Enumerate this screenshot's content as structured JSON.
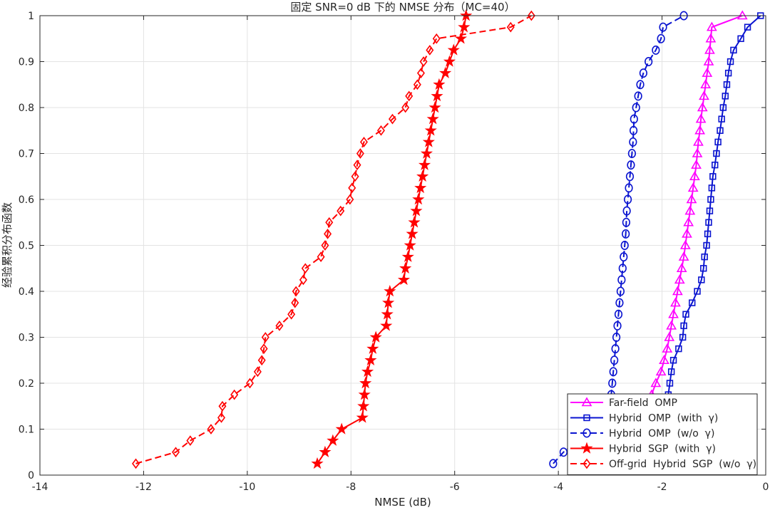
{
  "chart_data": {
    "type": "line",
    "title": "固定 SNR=0 dB 下的 NMSE 分布（MC=40）",
    "xlabel": "NMSE (dB)",
    "ylabel": "经验累积分布函数",
    "xlim": [
      -14,
      0
    ],
    "ylim": [
      0,
      1
    ],
    "xticks": [
      "-14",
      "-12",
      "-10",
      "-8",
      "-6",
      "-4",
      "-2",
      "0"
    ],
    "yticks": [
      "0",
      "0.1",
      "0.2",
      "0.3",
      "0.4",
      "0.5",
      "0.6",
      "0.7",
      "0.8",
      "0.9",
      "1"
    ],
    "grid": true,
    "legend_position": "bottom-right",
    "series": [
      {
        "name": "Far-field  OMP",
        "color": "#ff00ff",
        "marker": "triangle",
        "dash": "solid",
        "x": [
          -2.8,
          -2.72,
          -2.62,
          -2.52,
          -2.42,
          -2.3,
          -2.2,
          -2.12,
          -2.02,
          -1.96,
          -1.9,
          -1.86,
          -1.82,
          -1.78,
          -1.74,
          -1.7,
          -1.66,
          -1.62,
          -1.58,
          -1.55,
          -1.52,
          -1.49,
          -1.46,
          -1.43,
          -1.4,
          -1.37,
          -1.34,
          -1.32,
          -1.3,
          -1.27,
          -1.25,
          -1.22,
          -1.19,
          -1.16,
          -1.13,
          -1.1,
          -1.08,
          -1.06,
          -1.04,
          -0.45
        ],
        "y": [
          0.025,
          0.05,
          0.075,
          0.1,
          0.125,
          0.15,
          0.175,
          0.2,
          0.225,
          0.25,
          0.275,
          0.3,
          0.325,
          0.35,
          0.375,
          0.4,
          0.425,
          0.45,
          0.475,
          0.5,
          0.525,
          0.55,
          0.575,
          0.6,
          0.625,
          0.65,
          0.675,
          0.7,
          0.725,
          0.75,
          0.775,
          0.8,
          0.825,
          0.85,
          0.875,
          0.9,
          0.925,
          0.95,
          0.975,
          1.0
        ]
      },
      {
        "name": "Hybrid  OMP  (with  γ)",
        "color": "#0a14d0",
        "marker": "square",
        "dash": "solid",
        "x": [
          -3.3,
          -2.82,
          -2.55,
          -2.32,
          -2.12,
          -1.98,
          -1.88,
          -1.85,
          -1.82,
          -1.78,
          -1.68,
          -1.6,
          -1.58,
          -1.54,
          -1.42,
          -1.32,
          -1.24,
          -1.2,
          -1.18,
          -1.14,
          -1.12,
          -1.1,
          -1.08,
          -1.06,
          -1.04,
          -1.02,
          -0.98,
          -0.95,
          -0.92,
          -0.88,
          -0.85,
          -0.82,
          -0.78,
          -0.75,
          -0.72,
          -0.68,
          -0.62,
          -0.48,
          -0.35,
          -0.1
        ],
        "y": [
          0.025,
          0.05,
          0.075,
          0.1,
          0.125,
          0.15,
          0.175,
          0.2,
          0.225,
          0.25,
          0.275,
          0.3,
          0.325,
          0.35,
          0.375,
          0.4,
          0.425,
          0.45,
          0.475,
          0.5,
          0.525,
          0.55,
          0.575,
          0.6,
          0.625,
          0.65,
          0.675,
          0.7,
          0.725,
          0.75,
          0.775,
          0.8,
          0.825,
          0.85,
          0.875,
          0.9,
          0.925,
          0.95,
          0.975,
          1.0
        ]
      },
      {
        "name": "Hybrid  OMP  (w/o  γ)",
        "color": "#0a14d0",
        "marker": "circle",
        "dash": "dashed",
        "x": [
          -4.1,
          -3.9,
          -3.62,
          -3.38,
          -3.22,
          -3.08,
          -2.98,
          -2.96,
          -2.94,
          -2.92,
          -2.9,
          -2.88,
          -2.86,
          -2.84,
          -2.82,
          -2.8,
          -2.78,
          -2.76,
          -2.74,
          -2.72,
          -2.7,
          -2.69,
          -2.68,
          -2.66,
          -2.64,
          -2.62,
          -2.6,
          -2.58,
          -2.56,
          -2.55,
          -2.54,
          -2.5,
          -2.46,
          -2.42,
          -2.36,
          -2.26,
          -2.12,
          -2.02,
          -1.98,
          -1.58
        ],
        "y": [
          0.025,
          0.05,
          0.075,
          0.1,
          0.125,
          0.15,
          0.175,
          0.2,
          0.225,
          0.25,
          0.275,
          0.3,
          0.325,
          0.35,
          0.375,
          0.4,
          0.425,
          0.45,
          0.475,
          0.5,
          0.525,
          0.55,
          0.575,
          0.6,
          0.625,
          0.65,
          0.675,
          0.7,
          0.725,
          0.75,
          0.775,
          0.8,
          0.825,
          0.85,
          0.875,
          0.9,
          0.925,
          0.95,
          0.975,
          1.0
        ]
      },
      {
        "name": "Hybrid  SGP  (with  γ)",
        "color": "#ff0000",
        "marker": "star",
        "dash": "solid",
        "x": [
          -8.65,
          -8.5,
          -8.35,
          -8.18,
          -7.78,
          -7.76,
          -7.74,
          -7.72,
          -7.68,
          -7.62,
          -7.58,
          -7.52,
          -7.32,
          -7.3,
          -7.28,
          -7.25,
          -6.98,
          -6.95,
          -6.9,
          -6.86,
          -6.82,
          -6.78,
          -6.74,
          -6.7,
          -6.66,
          -6.62,
          -6.58,
          -6.54,
          -6.5,
          -6.46,
          -6.42,
          -6.38,
          -6.34,
          -6.3,
          -6.18,
          -6.1,
          -6.02,
          -5.88,
          -5.82,
          -5.78
        ],
        "y": [
          0.025,
          0.05,
          0.075,
          0.1,
          0.125,
          0.15,
          0.175,
          0.2,
          0.225,
          0.25,
          0.275,
          0.3,
          0.325,
          0.35,
          0.375,
          0.4,
          0.425,
          0.45,
          0.475,
          0.5,
          0.525,
          0.55,
          0.575,
          0.6,
          0.625,
          0.65,
          0.675,
          0.7,
          0.725,
          0.75,
          0.775,
          0.8,
          0.825,
          0.85,
          0.875,
          0.9,
          0.925,
          0.95,
          0.975,
          1.0
        ]
      },
      {
        "name": "Off-grid  Hybrid  SGP  (w/o  γ)",
        "color": "#ff0000",
        "marker": "diamond",
        "dash": "dashed",
        "x": [
          -12.15,
          -11.38,
          -11.1,
          -10.7,
          -10.5,
          -10.48,
          -10.25,
          -9.95,
          -9.8,
          -9.72,
          -9.68,
          -9.65,
          -9.38,
          -9.15,
          -9.08,
          -9.06,
          -8.92,
          -8.88,
          -8.58,
          -8.5,
          -8.45,
          -8.42,
          -8.2,
          -8.02,
          -7.98,
          -7.92,
          -7.88,
          -7.82,
          -7.75,
          -7.42,
          -7.2,
          -6.95,
          -6.88,
          -6.72,
          -6.65,
          -6.6,
          -6.48,
          -6.35,
          -4.92,
          -4.52
        ],
        "y": [
          0.025,
          0.05,
          0.075,
          0.1,
          0.125,
          0.15,
          0.175,
          0.2,
          0.225,
          0.25,
          0.275,
          0.3,
          0.325,
          0.35,
          0.375,
          0.4,
          0.425,
          0.45,
          0.475,
          0.5,
          0.525,
          0.55,
          0.575,
          0.6,
          0.625,
          0.65,
          0.675,
          0.7,
          0.725,
          0.75,
          0.775,
          0.8,
          0.825,
          0.85,
          0.875,
          0.9,
          0.925,
          0.95,
          0.975,
          1.0
        ]
      }
    ]
  }
}
